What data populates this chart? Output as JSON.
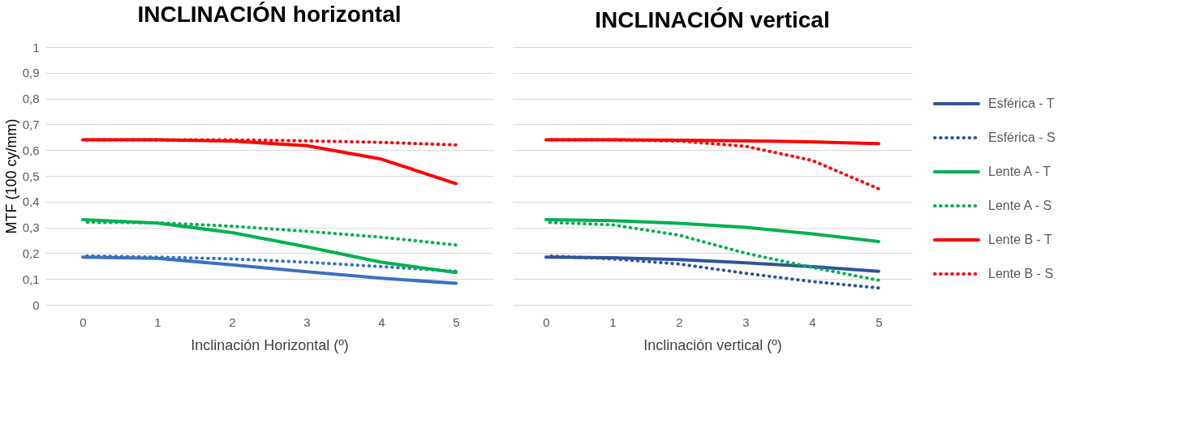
{
  "chart_data": [
    {
      "type": "line",
      "title": "INCLINACIÓN horizontal",
      "xlabel": "Inclinación Horizontal (º)",
      "ylabel": "MTF (100 cy/mm)",
      "x": [
        0,
        1,
        2,
        3,
        4,
        5
      ],
      "xlim": [
        -0.5,
        5.5
      ],
      "xticks": [
        0,
        1,
        2,
        3,
        4,
        5
      ],
      "ylim": [
        0,
        1
      ],
      "yticks": [
        {
          "value": 0,
          "label": "0"
        },
        {
          "value": 0.1,
          "label": "0,1"
        },
        {
          "value": 0.2,
          "label": "0,2"
        },
        {
          "value": 0.3,
          "label": "0,3"
        },
        {
          "value": 0.4,
          "label": "0,4"
        },
        {
          "value": 0.5,
          "label": "0,5"
        },
        {
          "value": 0.6,
          "label": "0,6"
        },
        {
          "value": 0.7,
          "label": "0,7"
        },
        {
          "value": 0.8,
          "label": "0,8"
        },
        {
          "value": 0.9,
          "label": "0,9"
        },
        {
          "value": 1,
          "label": "1"
        }
      ],
      "grid": "y",
      "legend": false,
      "marker": "none",
      "series": [
        {
          "color": "#3a72bf",
          "line_style": "solid",
          "values": [
            0.185,
            0.18,
            0.155,
            0.128,
            0.103,
            0.083
          ]
        },
        {
          "color": "#3a72bf",
          "line_style": "dotted",
          "values": [
            0.19,
            0.185,
            0.178,
            0.165,
            0.148,
            0.13
          ]
        },
        {
          "color": "#00b050",
          "line_style": "solid",
          "values": [
            0.33,
            0.317,
            0.28,
            0.225,
            0.165,
            0.125
          ]
        },
        {
          "color": "#00b050",
          "line_style": "dotted",
          "values": [
            0.32,
            0.318,
            0.305,
            0.285,
            0.262,
            0.232
          ]
        },
        {
          "color": "#ff0000",
          "line_style": "solid",
          "values": [
            0.64,
            0.64,
            0.635,
            0.617,
            0.565,
            0.47
          ]
        },
        {
          "color": "#ff0000",
          "line_style": "dotted",
          "values": [
            0.64,
            0.64,
            0.64,
            0.636,
            0.63,
            0.62
          ]
        }
      ]
    },
    {
      "type": "line",
      "title": "INCLINACIÓN vertical",
      "xlabel": "Inclinación vertical (º)",
      "x": [
        0,
        1,
        2,
        3,
        4,
        5
      ],
      "xlim": [
        -0.5,
        5.5
      ],
      "xticks": [
        0,
        1,
        2,
        3,
        4,
        5
      ],
      "ylim": [
        0,
        1
      ],
      "yticks": [
        {
          "value": 0,
          "label": null
        },
        {
          "value": 0.1,
          "label": null
        },
        {
          "value": 0.2,
          "label": null
        },
        {
          "value": 0.3,
          "label": null
        },
        {
          "value": 0.4,
          "label": null
        },
        {
          "value": 0.5,
          "label": null
        },
        {
          "value": 0.6,
          "label": null
        },
        {
          "value": 0.7,
          "label": null
        },
        {
          "value": 0.8,
          "label": null
        },
        {
          "value": 0.9,
          "label": null
        },
        {
          "value": 1,
          "label": null
        }
      ],
      "tick_labels": "x",
      "grid": "y",
      "legend": "right",
      "marker": "none",
      "series": [
        {
          "name": "Esférica - T",
          "color": "#2f5597",
          "line_style": "solid",
          "values": [
            0.185,
            0.182,
            0.175,
            0.163,
            0.148,
            0.13
          ]
        },
        {
          "name": "Esférica - S",
          "color": "#2f5597",
          "line_style": "dotted",
          "values": [
            0.19,
            0.178,
            0.158,
            0.122,
            0.09,
            0.065
          ]
        },
        {
          "name": "Lente A - T",
          "color": "#00b050",
          "line_style": "solid",
          "values": [
            0.33,
            0.326,
            0.316,
            0.3,
            0.275,
            0.245
          ]
        },
        {
          "name": "Lente A - S",
          "color": "#00b050",
          "line_style": "dotted",
          "values": [
            0.32,
            0.31,
            0.27,
            0.2,
            0.145,
            0.095
          ]
        },
        {
          "name": "Lente B - T",
          "color": "#ff0000",
          "line_style": "solid",
          "values": [
            0.64,
            0.64,
            0.638,
            0.636,
            0.632,
            0.625
          ]
        },
        {
          "name": "Lente B - S",
          "color": "#ff0000",
          "line_style": "dotted",
          "values": [
            0.64,
            0.64,
            0.635,
            0.615,
            0.56,
            0.45
          ]
        }
      ]
    }
  ]
}
